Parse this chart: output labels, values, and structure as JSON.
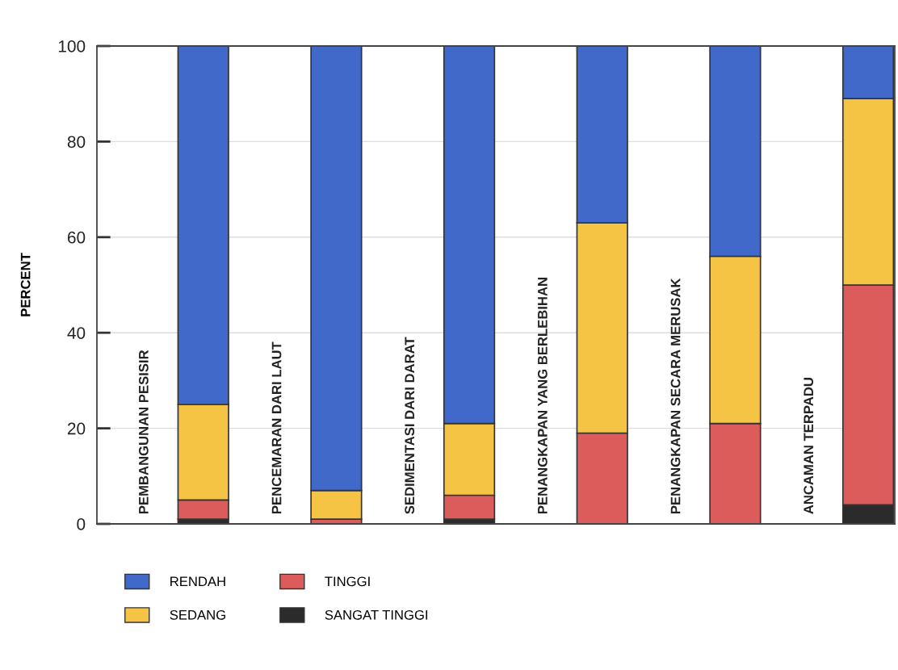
{
  "chart_data": {
    "type": "bar",
    "stacked": true,
    "ylabel": "PERCENT",
    "categories": [
      "PEMBANGUNAN PESISIR",
      "PENCEMARAN DARI LAUT",
      "SEDIMENTASI DARI DARAT",
      "PENANGKAPAN YANG BERLEBIHAN",
      "PENANGKAPAN SECARA MERUSAK",
      "ANCAMAN TERPADU"
    ],
    "series": [
      {
        "name": "SANGAT TINGGI",
        "color": "#2b2b2b",
        "values": [
          1,
          null,
          1,
          0,
          0,
          4
        ]
      },
      {
        "name": "TINGGI",
        "color": "#dc5c5c",
        "values": [
          4,
          1,
          5,
          19,
          21,
          46
        ]
      },
      {
        "name": "SEDANG",
        "color": "#f6c444",
        "values": [
          20,
          6,
          15,
          44,
          35,
          39
        ]
      },
      {
        "name": "RENDAH",
        "color": "#4169c9",
        "values": [
          75,
          93,
          79,
          37,
          44,
          11
        ]
      }
    ],
    "ylim": [
      0,
      100
    ],
    "yticks": [
      0,
      20,
      40,
      60,
      80,
      100
    ],
    "grid": "y",
    "legend": "bottom left",
    "tick_labels": "y"
  }
}
